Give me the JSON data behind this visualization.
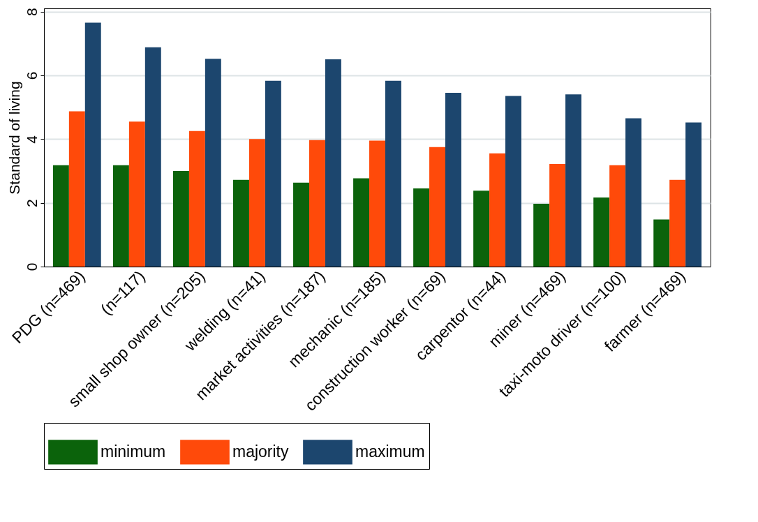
{
  "chart_data": {
    "type": "bar",
    "ylabel": "Standard of living",
    "categories": [
      "PDG (n=469)",
      "(n=117)",
      "small shop owner (n=205)",
      "welding (n=41)",
      "market activities (n=187)",
      "mechanic (n=185)",
      "construction worker (n=69)",
      "carpentor (n=44)",
      "miner (n=469)",
      "taxi-moto driver (n=100)",
      "farmer (n=469)"
    ],
    "series": [
      {
        "name": "minimum",
        "color": "#0b630b",
        "values": [
          3.18,
          3.18,
          3.0,
          2.72,
          2.63,
          2.77,
          2.45,
          2.38,
          1.97,
          2.17,
          1.48
        ]
      },
      {
        "name": "majority",
        "color": "#ff4a0a",
        "values": [
          4.87,
          4.55,
          4.25,
          4.0,
          3.97,
          3.95,
          3.75,
          3.55,
          3.22,
          3.18,
          2.72
        ]
      },
      {
        "name": "maximum",
        "color": "#1c466e",
        "values": [
          7.65,
          6.88,
          6.52,
          5.83,
          6.5,
          5.83,
          5.45,
          5.35,
          5.4,
          4.65,
          4.52
        ]
      }
    ],
    "ylim": [
      0,
      8.1
    ],
    "yticks": [
      0,
      2,
      4,
      6,
      8
    ],
    "grid": "y",
    "legend": "bottom"
  }
}
